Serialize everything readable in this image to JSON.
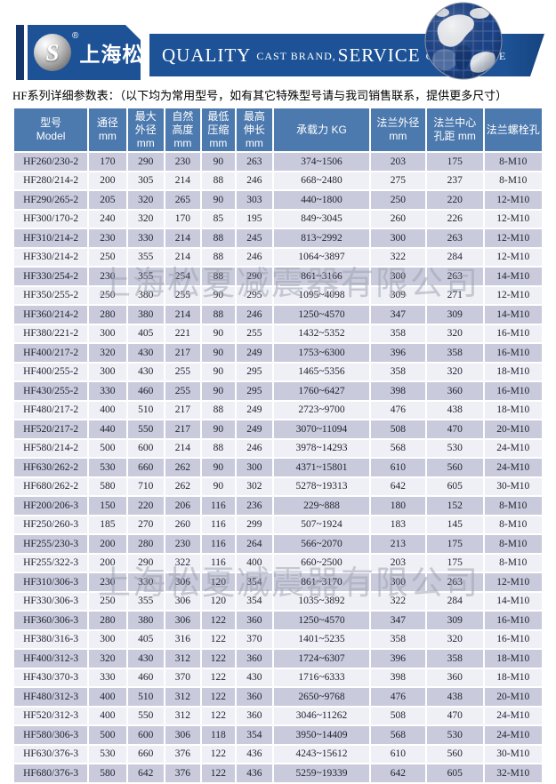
{
  "header": {
    "brand": "上海松夏",
    "registered": "®",
    "logo_letter": "S",
    "slogan_parts": [
      {
        "text": "QUALITY"
      },
      {
        "text": "CAST BRAND,"
      },
      {
        "text": "SERVICE"
      },
      {
        "text": "CREAT VALUE"
      }
    ]
  },
  "note": "HF系列详细参数表：（以下均为常用型号，如有其它特殊型号请与我司销售联系，提供更多尺寸）",
  "watermark": "上海松夏减震器有限公司",
  "colors": {
    "banner_blue": "#1d5296",
    "navy": "#14366b",
    "header_blue": "#4c79ae",
    "row_dark": "#c9cbdc",
    "row_light": "#eef0f6"
  },
  "table": {
    "columns": [
      "型号\nModel",
      "通径\nmm",
      "最大\n外径\nmm",
      "自然\n高度\nmm",
      "最低\n压缩\nmm",
      "最高\n伸长\nmm",
      "承载力 KG",
      "法兰外径\nmm",
      "法兰中心\n孔距 mm",
      "法兰螺栓孔"
    ],
    "rows": [
      [
        "HF260/230-2",
        "170",
        "290",
        "230",
        "90",
        "263",
        "374~1506",
        "203",
        "175",
        "8-M10"
      ],
      [
        "HF280/214-2",
        "200",
        "305",
        "214",
        "88",
        "246",
        "668~2480",
        "275",
        "237",
        "8-M10"
      ],
      [
        "HF290/265-2",
        "205",
        "320",
        "265",
        "90",
        "303",
        "440~1800",
        "250",
        "220",
        "12-M10"
      ],
      [
        "HF300/170-2",
        "240",
        "320",
        "170",
        "85",
        "195",
        "849~3045",
        "260",
        "226",
        "12-M10"
      ],
      [
        "HF310/214-2",
        "230",
        "330",
        "214",
        "88",
        "245",
        "813~2992",
        "300",
        "263",
        "12-M10"
      ],
      [
        "HF330/214-2",
        "250",
        "355",
        "214",
        "88",
        "246",
        "1064~3897",
        "322",
        "284",
        "12-M10"
      ],
      [
        "HF330/254-2",
        "230",
        "355",
        "254",
        "88",
        "290",
        "861~3166",
        "300",
        "263",
        "14-M10"
      ],
      [
        "HF350/255-2",
        "250",
        "380",
        "255",
        "90",
        "295",
        "1095~4098",
        "309",
        "271",
        "12-M10"
      ],
      [
        "HF360/214-2",
        "280",
        "380",
        "214",
        "88",
        "246",
        "1250~4570",
        "347",
        "309",
        "14-M10"
      ],
      [
        "HF380/221-2",
        "300",
        "405",
        "221",
        "90",
        "255",
        "1432~5352",
        "358",
        "320",
        "16-M10"
      ],
      [
        "HF400/217-2",
        "320",
        "430",
        "217",
        "90",
        "249",
        "1753~6300",
        "396",
        "358",
        "16-M10"
      ],
      [
        "HF400/255-2",
        "300",
        "430",
        "255",
        "90",
        "295",
        "1465~5356",
        "358",
        "320",
        "18-M10"
      ],
      [
        "HF430/255-2",
        "330",
        "460",
        "255",
        "90",
        "295",
        "1760~6427",
        "398",
        "360",
        "16-M10"
      ],
      [
        "HF480/217-2",
        "400",
        "510",
        "217",
        "88",
        "249",
        "2723~9700",
        "476",
        "438",
        "18-M10"
      ],
      [
        "HF520/217-2",
        "440",
        "550",
        "217",
        "90",
        "249",
        "3070~11094",
        "508",
        "470",
        "20-M10"
      ],
      [
        "HF580/214-2",
        "500",
        "600",
        "214",
        "88",
        "246",
        "3978~14293",
        "568",
        "530",
        "24-M10"
      ],
      [
        "HF630/262-2",
        "530",
        "660",
        "262",
        "90",
        "300",
        "4371~15801",
        "610",
        "560",
        "24-M10"
      ],
      [
        "HF680/262-2",
        "580",
        "710",
        "262",
        "90",
        "302",
        "5278~19313",
        "642",
        "605",
        "30-M10"
      ],
      [
        "HF200/206-3",
        "150",
        "220",
        "206",
        "116",
        "236",
        "229~888",
        "180",
        "152",
        "8-M10"
      ],
      [
        "HF250/260-3",
        "185",
        "270",
        "260",
        "116",
        "299",
        "507~1924",
        "183",
        "145",
        "8-M10"
      ],
      [
        "HF255/230-3",
        "200",
        "280",
        "230",
        "116",
        "264",
        "566~2070",
        "213",
        "175",
        "8-M10"
      ],
      [
        "HF255/322-3",
        "200",
        "290",
        "322",
        "116",
        "400",
        "660~2500",
        "203",
        "175",
        "8-M10"
      ],
      [
        "HF310/306-3",
        "230",
        "330",
        "306",
        "120",
        "354",
        "861~3170",
        "300",
        "263",
        "12-M10"
      ],
      [
        "HF330/306-3",
        "250",
        "355",
        "306",
        "120",
        "354",
        "1035~3892",
        "322",
        "284",
        "14-M10"
      ],
      [
        "HF360/306-3",
        "280",
        "380",
        "306",
        "122",
        "360",
        "1250~4570",
        "347",
        "309",
        "16-M10"
      ],
      [
        "HF380/316-3",
        "300",
        "405",
        "316",
        "122",
        "370",
        "1401~5235",
        "358",
        "320",
        "16-M10"
      ],
      [
        "HF400/312-3",
        "320",
        "430",
        "312",
        "122",
        "360",
        "1724~6307",
        "396",
        "358",
        "18-M10"
      ],
      [
        "HF430/370-3",
        "330",
        "460",
        "370",
        "122",
        "430",
        "1716~6333",
        "398",
        "360",
        "18-M10"
      ],
      [
        "HF480/312-3",
        "400",
        "510",
        "312",
        "122",
        "360",
        "2650~9768",
        "476",
        "438",
        "20-M10"
      ],
      [
        "HF520/312-3",
        "400",
        "550",
        "312",
        "122",
        "360",
        "3046~11262",
        "508",
        "470",
        "24-M10"
      ],
      [
        "HF580/306-3",
        "500",
        "600",
        "306",
        "118",
        "354",
        "3950~14409",
        "568",
        "530",
        "24-M10"
      ],
      [
        "HF630/376-3",
        "530",
        "660",
        "376",
        "122",
        "436",
        "4243~15612",
        "610",
        "560",
        "30-M10"
      ],
      [
        "HF680/376-3",
        "580",
        "642",
        "376",
        "122",
        "436",
        "5259~19339",
        "642",
        "605",
        "32-M10"
      ]
    ]
  }
}
